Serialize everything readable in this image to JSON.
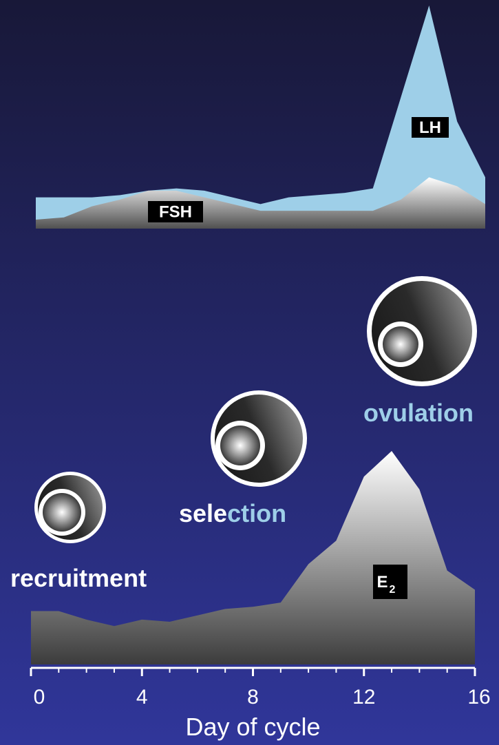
{
  "chart_data": [
    {
      "type": "area",
      "x": [
        0,
        1,
        2,
        3,
        4,
        5,
        6,
        7,
        8,
        9,
        10,
        11,
        12,
        13,
        14,
        15,
        16
      ],
      "xlim": [
        0,
        16
      ],
      "ylim": [
        0,
        100
      ],
      "series": [
        {
          "name": "LH",
          "color": "#9ecfe8",
          "values": [
            14,
            14,
            14,
            15,
            17,
            18,
            17,
            14,
            11,
            14,
            15,
            16,
            18,
            59,
            100,
            48,
            23
          ]
        },
        {
          "name": "FSH",
          "color": "gradient",
          "values": [
            4,
            5,
            10,
            13,
            17,
            17,
            14,
            11,
            8,
            8,
            8,
            8,
            8,
            13,
            23,
            19,
            11
          ]
        }
      ]
    },
    {
      "type": "area",
      "x": [
        0,
        1,
        2,
        3,
        4,
        5,
        6,
        7,
        8,
        9,
        10,
        11,
        12,
        13,
        14,
        15,
        16
      ],
      "xlim": [
        0,
        16
      ],
      "ylim": [
        0,
        100
      ],
      "xticks": [
        0,
        4,
        8,
        12,
        16
      ],
      "xminor_ticks": [
        1,
        2,
        3,
        5,
        6,
        7,
        9,
        10,
        11,
        13,
        14,
        15
      ],
      "xlabel": "Day of cycle",
      "series": [
        {
          "name": "E",
          "subscript": "2",
          "color": "gradient",
          "values": [
            25,
            25,
            21,
            18,
            21,
            20,
            23,
            26,
            27,
            29,
            47,
            58,
            88,
            100,
            82,
            44,
            35
          ]
        }
      ],
      "annotations": [
        {
          "parts": [
            {
              "text": "recruitment",
              "color": "#ffffff"
            }
          ]
        },
        {
          "parts": [
            {
              "text": "sele",
              "color": "#ffffff"
            },
            {
              "text": "ction",
              "color": "#9ecfe8"
            }
          ]
        },
        {
          "parts": [
            {
              "text": "ovulation",
              "color": "#9ecfe8"
            }
          ]
        }
      ]
    }
  ]
}
